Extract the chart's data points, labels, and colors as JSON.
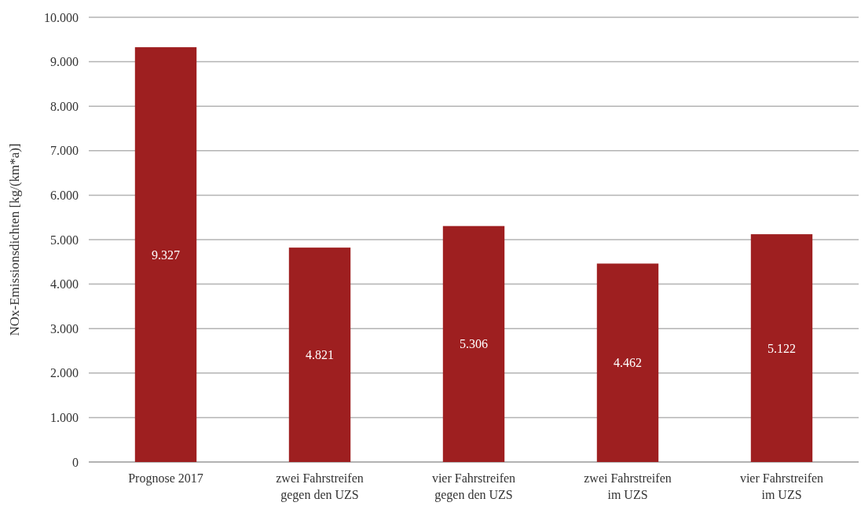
{
  "chart_data": {
    "type": "bar",
    "ylabel": "NOx-Emissionsdichten [kg/(km*a)]",
    "categories": [
      "Prognose 2017",
      "zwei Fahrstreifen\ngegen den UZS",
      "vier Fahrstreifen\ngegen den UZS",
      "zwei Fahrstreifen\nim UZS",
      "vier Fahrstreifen\nim UZS"
    ],
    "values": [
      9327,
      4821,
      5306,
      4462,
      5122
    ],
    "value_labels": [
      "9.327",
      "4.821",
      "5.306",
      "4.462",
      "5.122"
    ],
    "color": "#9e1f20",
    "ylim": [
      0,
      10000
    ],
    "yticks": [
      0,
      {
        "value": 1000,
        "label": "1.000"
      },
      {
        "value": 2000,
        "label": "2.000"
      },
      {
        "value": 3000,
        "label": "3.000"
      },
      {
        "value": 4000,
        "label": "4.000"
      },
      {
        "value": 5000,
        "label": "5.000"
      },
      {
        "value": 6000,
        "label": "6.000"
      },
      {
        "value": 7000,
        "label": "7.000"
      },
      {
        "value": 8000,
        "label": "8.000"
      },
      {
        "value": 9000,
        "label": "9.000"
      },
      {
        "value": 10000,
        "label": "10.000"
      }
    ],
    "grid": "y"
  }
}
